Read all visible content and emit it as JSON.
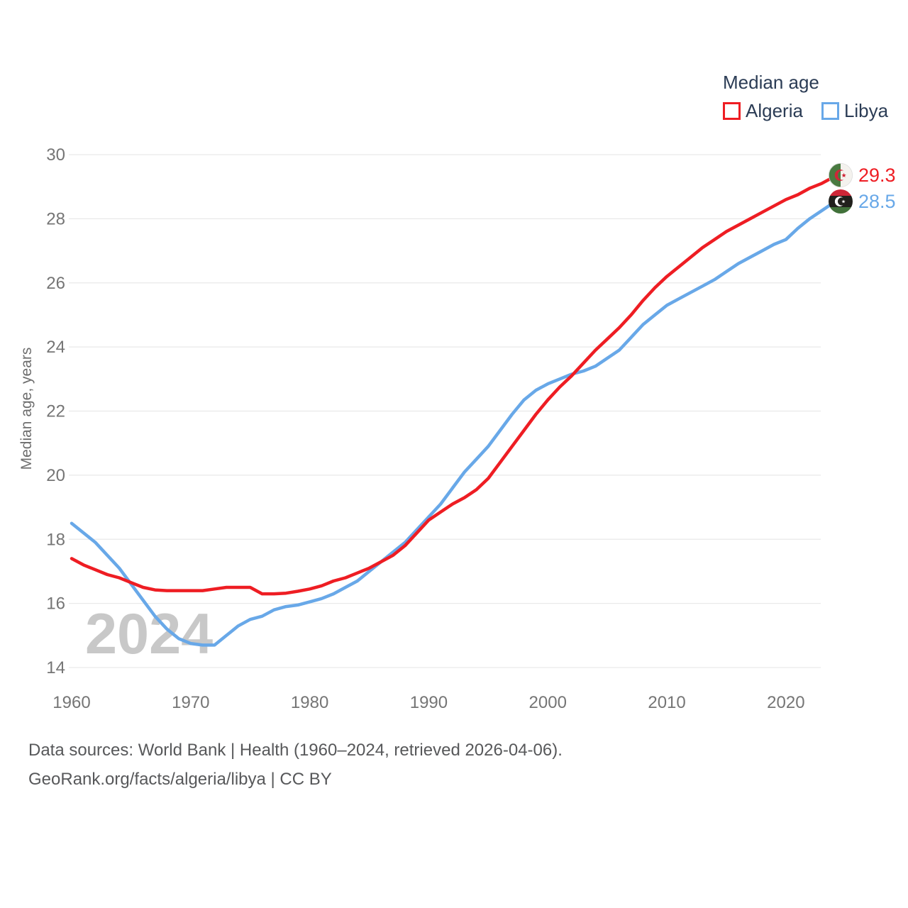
{
  "legend": {
    "title": "Median age",
    "items": [
      {
        "label": "Algeria",
        "color": "#ee1d23"
      },
      {
        "label": "Libya",
        "color": "#68a8e8"
      }
    ]
  },
  "watermark": {
    "text": "2024"
  },
  "end_labels": [
    {
      "country": "Algeria",
      "value": "29.3",
      "color": "#ee1d23",
      "flag": "algeria-flag"
    },
    {
      "country": "Libya",
      "value": "28.5",
      "color": "#68a8e8",
      "flag": "libya-flag"
    }
  ],
  "footer": {
    "line1": "Data sources: World Bank | Health (1960–2024, retrieved 2026-04-06).",
    "line2": "GeoRank.org/facts/algeria/libya | CC BY"
  },
  "colors": {
    "grid": "#e9e9e9",
    "tick_text": "#757575",
    "axis_label_text": "#6e6e6e",
    "legend_text": "#2b3c55",
    "watermark_text": "#c8c8c8",
    "footer_text": "#57585a",
    "background": "#ffffff"
  },
  "chart_data": {
    "type": "line",
    "title": "Median age",
    "xlabel": "",
    "ylabel": "Median age, years",
    "ylim": [
      14,
      30
    ],
    "x_range": [
      1960,
      2024
    ],
    "y_ticks": [
      14,
      16,
      18,
      20,
      22,
      24,
      26,
      28,
      30
    ],
    "x_ticks": [
      1960,
      1970,
      1980,
      1990,
      2000,
      2010,
      2020
    ],
    "grid": "horizontal",
    "legend_position": "top-right",
    "x_start_year": 1960,
    "series": [
      {
        "name": "Libya",
        "color": "#68a8e8",
        "end_value": 28.5,
        "values": [
          18.5,
          18.2,
          17.9,
          17.5,
          17.1,
          16.6,
          16.1,
          15.6,
          15.2,
          14.9,
          14.75,
          14.7,
          14.7,
          15.0,
          15.3,
          15.5,
          15.6,
          15.8,
          15.9,
          15.95,
          16.05,
          16.15,
          16.3,
          16.5,
          16.7,
          17.0,
          17.3,
          17.6,
          17.9,
          18.3,
          18.7,
          19.1,
          19.6,
          20.1,
          20.5,
          20.9,
          21.4,
          21.9,
          22.35,
          22.65,
          22.85,
          23.0,
          23.15,
          23.25,
          23.4,
          23.65,
          23.9,
          24.3,
          24.7,
          25.0,
          25.3,
          25.5,
          25.7,
          25.9,
          26.1,
          26.35,
          26.6,
          26.8,
          27.0,
          27.2,
          27.35,
          27.7,
          28.0,
          28.25,
          28.5
        ]
      },
      {
        "name": "Algeria",
        "color": "#ee1d23",
        "end_value": 29.3,
        "values": [
          17.4,
          17.2,
          17.05,
          16.9,
          16.8,
          16.65,
          16.5,
          16.42,
          16.4,
          16.4,
          16.4,
          16.4,
          16.45,
          16.5,
          16.5,
          16.5,
          16.3,
          16.3,
          16.32,
          16.38,
          16.45,
          16.55,
          16.7,
          16.8,
          16.95,
          17.1,
          17.3,
          17.5,
          17.8,
          18.2,
          18.6,
          18.85,
          19.1,
          19.3,
          19.55,
          19.9,
          20.4,
          20.9,
          21.4,
          21.9,
          22.35,
          22.75,
          23.1,
          23.5,
          23.9,
          24.25,
          24.6,
          25.0,
          25.45,
          25.85,
          26.2,
          26.5,
          26.8,
          27.1,
          27.35,
          27.6,
          27.8,
          28.0,
          28.2,
          28.4,
          28.6,
          28.75,
          28.95,
          29.1,
          29.3
        ]
      }
    ]
  }
}
